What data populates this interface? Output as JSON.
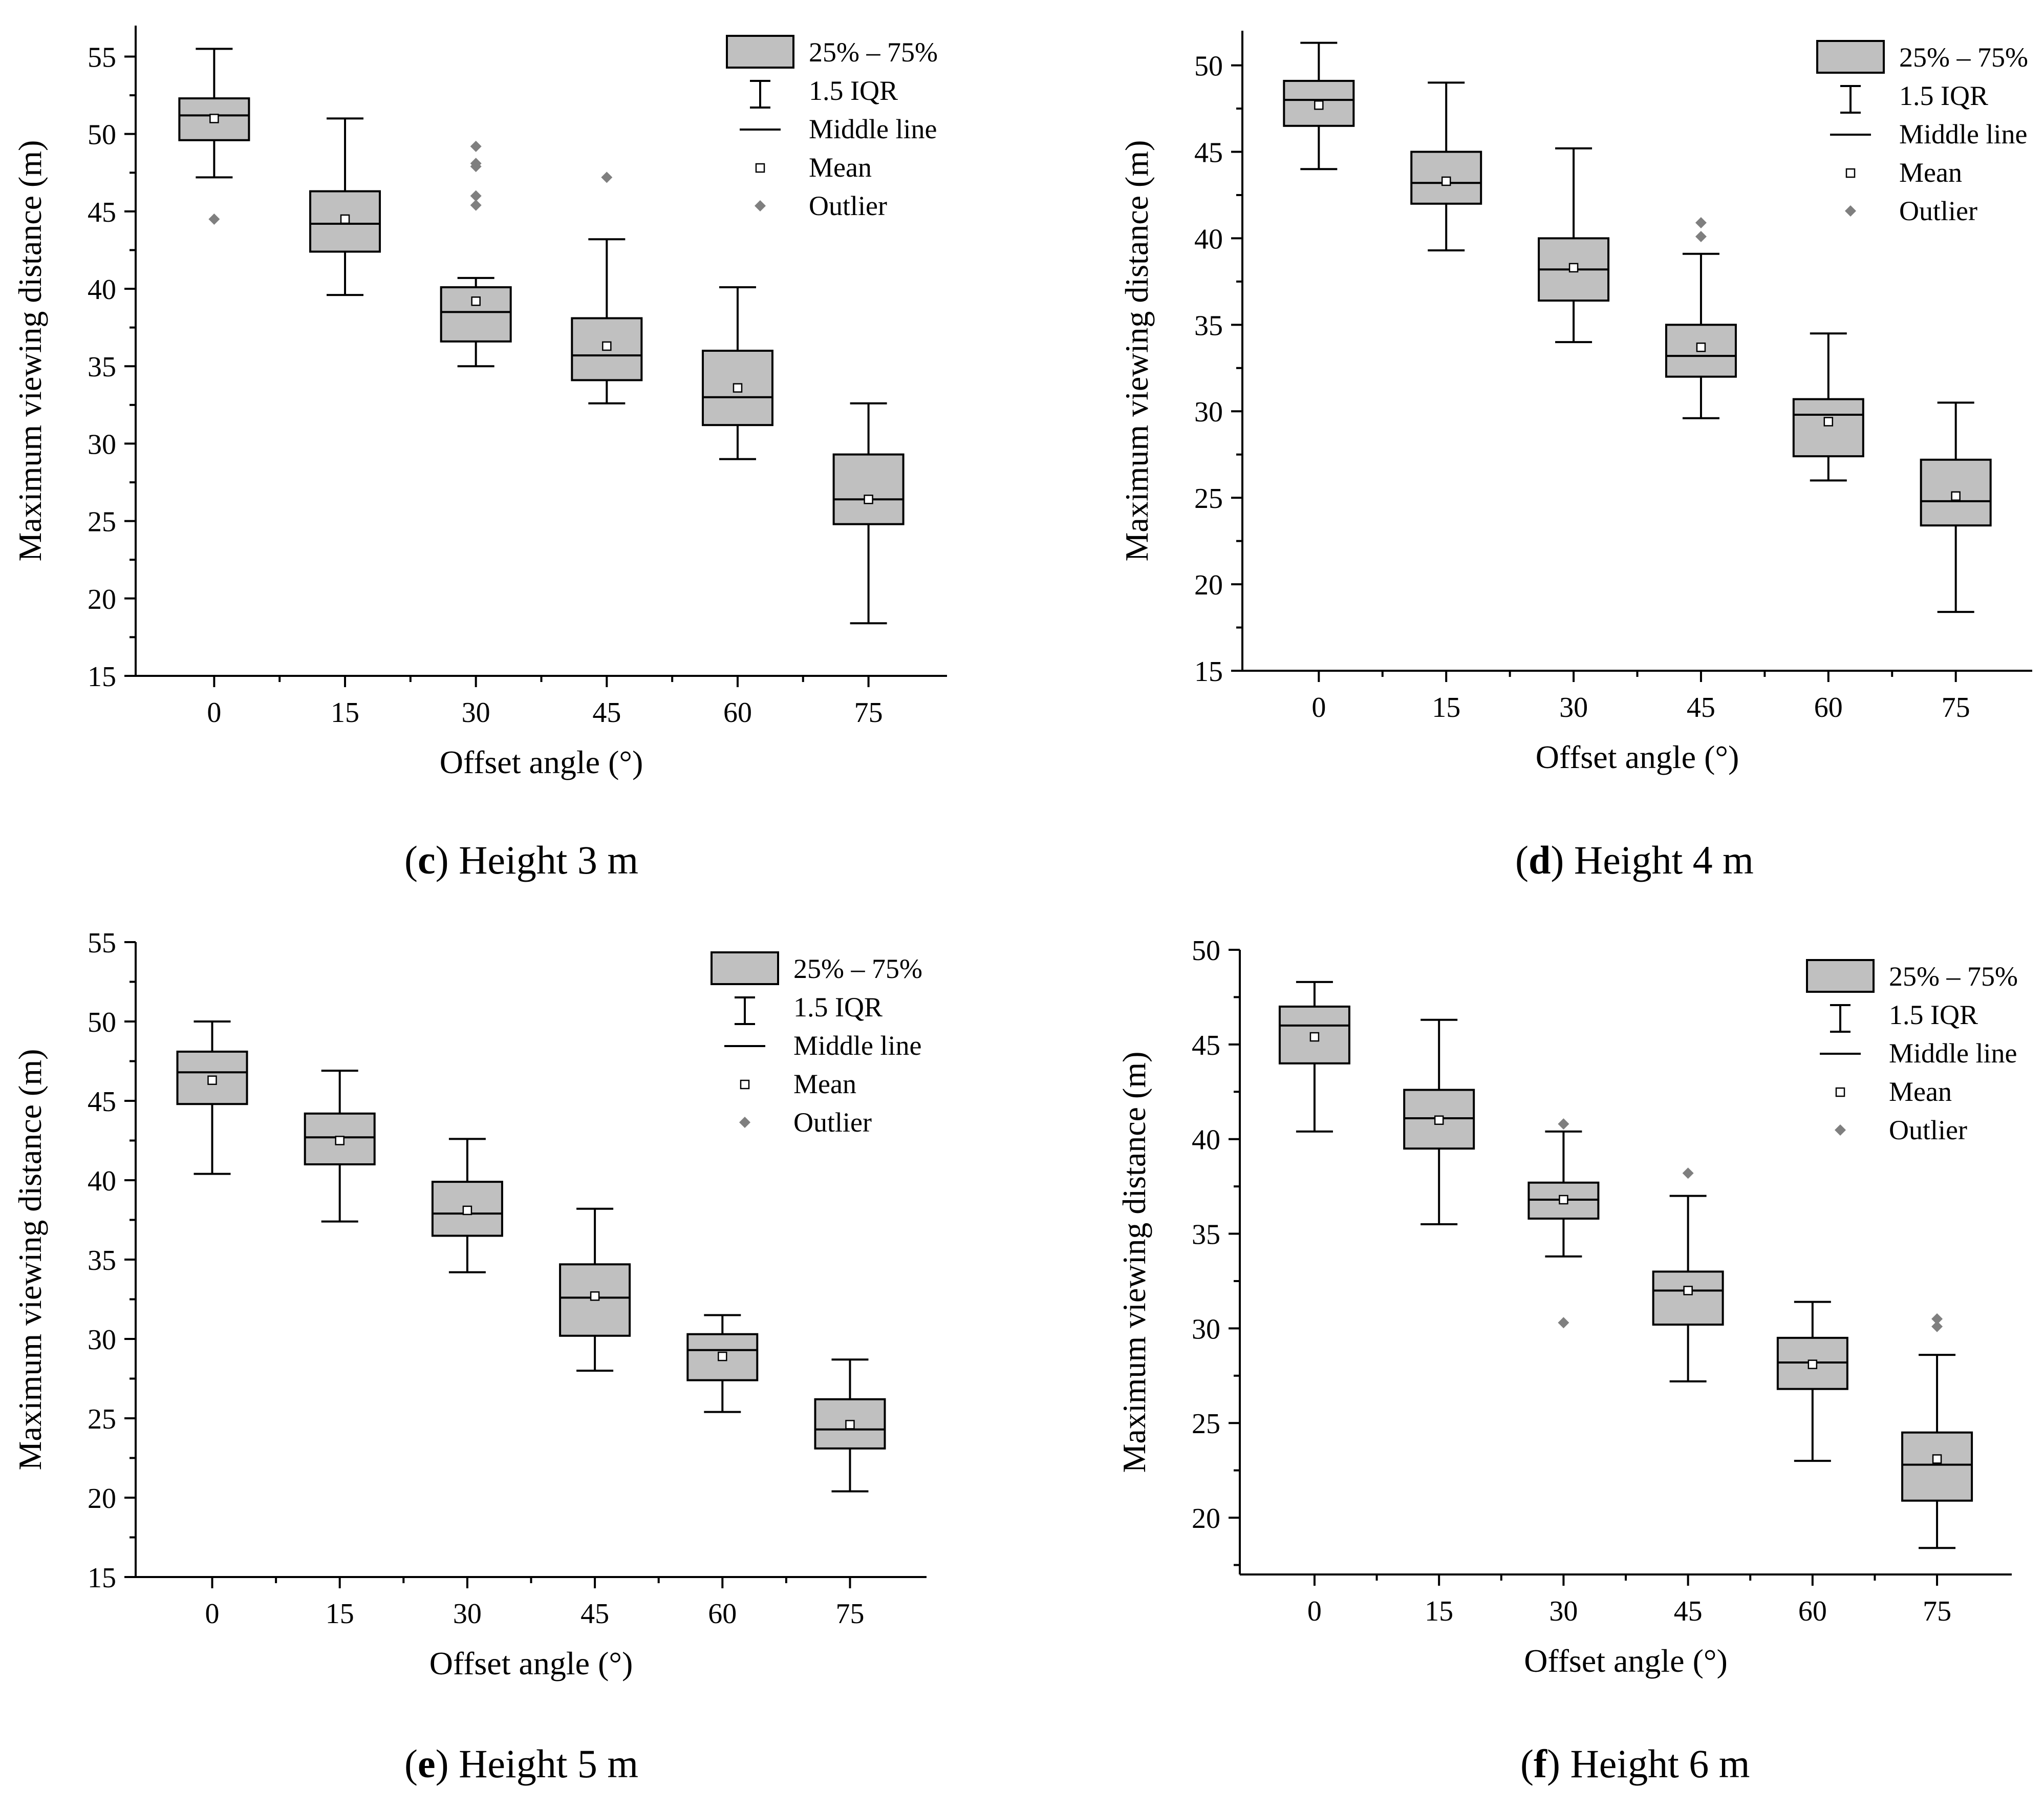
{
  "legend": {
    "box": "25% – 75%",
    "whisker": "1.5 IQR",
    "median": "Middle line",
    "mean": "Mean",
    "outlier": "Outlier"
  },
  "colors": {
    "box_fill": "#c0c0c0",
    "line": "#000000",
    "outlier": "#7f7f7f"
  },
  "chart_data": [
    {
      "type": "box",
      "panel_letter": "c",
      "caption": "Height 3 m",
      "xlabel": "Offset angle (°)",
      "ylabel": "Maximum viewing distance (m)",
      "categories": [
        "0",
        "15",
        "30",
        "45",
        "60",
        "75"
      ],
      "ylim": [
        15,
        57
      ],
      "yticks": [
        15,
        20,
        25,
        30,
        35,
        40,
        45,
        50,
        55
      ],
      "boxes": [
        {
          "min": 47.2,
          "q1": 49.6,
          "median": 51.2,
          "q3": 52.3,
          "max": 55.5,
          "mean": 51.0,
          "outliers": [
            44.5
          ]
        },
        {
          "min": 39.6,
          "q1": 42.4,
          "median": 44.2,
          "q3": 46.3,
          "max": 51.0,
          "mean": 44.5,
          "outliers": []
        },
        {
          "min": 35.0,
          "q1": 36.6,
          "median": 38.5,
          "q3": 40.1,
          "max": 40.7,
          "mean": 39.2,
          "outliers": [
            49.2,
            48.1,
            47.9,
            46.0,
            45.4
          ]
        },
        {
          "min": 32.6,
          "q1": 34.1,
          "median": 35.7,
          "q3": 38.1,
          "max": 43.2,
          "mean": 36.3,
          "outliers": [
            47.2
          ]
        },
        {
          "min": 29.0,
          "q1": 31.2,
          "median": 33.0,
          "q3": 36.0,
          "max": 40.1,
          "mean": 33.6,
          "outliers": []
        },
        {
          "min": 18.4,
          "q1": 24.8,
          "median": 26.4,
          "q3": 29.3,
          "max": 32.6,
          "mean": 26.4,
          "outliers": []
        }
      ]
    },
    {
      "type": "box",
      "panel_letter": "d",
      "caption": "Height 4 m",
      "xlabel": "Offset angle (°)",
      "ylabel": "Maximum viewing distance (m)",
      "categories": [
        "0",
        "15",
        "30",
        "45",
        "60",
        "75"
      ],
      "ylim": [
        15,
        52
      ],
      "yticks": [
        15,
        20,
        25,
        30,
        35,
        40,
        45,
        50
      ],
      "boxes": [
        {
          "min": 44.0,
          "q1": 46.5,
          "median": 48.0,
          "q3": 49.1,
          "max": 51.3,
          "mean": 47.7,
          "outliers": []
        },
        {
          "min": 39.3,
          "q1": 42.0,
          "median": 43.2,
          "q3": 45.0,
          "max": 49.0,
          "mean": 43.3,
          "outliers": []
        },
        {
          "min": 34.0,
          "q1": 36.4,
          "median": 38.2,
          "q3": 40.0,
          "max": 45.2,
          "mean": 38.3,
          "outliers": []
        },
        {
          "min": 29.6,
          "q1": 32.0,
          "median": 33.2,
          "q3": 35.0,
          "max": 39.1,
          "mean": 33.7,
          "outliers": [
            40.9,
            40.1
          ]
        },
        {
          "min": 26.0,
          "q1": 27.4,
          "median": 29.8,
          "q3": 30.7,
          "max": 34.5,
          "mean": 29.4,
          "outliers": []
        },
        {
          "min": 18.4,
          "q1": 23.4,
          "median": 24.8,
          "q3": 27.2,
          "max": 30.5,
          "mean": 25.1,
          "outliers": []
        }
      ]
    },
    {
      "type": "box",
      "panel_letter": "e",
      "caption": "Height 5 m",
      "xlabel": "Offset angle (°)",
      "ylabel": "Maximum viewing distance (m)",
      "categories": [
        "0",
        "15",
        "30",
        "45",
        "60",
        "75"
      ],
      "ylim": [
        15,
        55
      ],
      "yticks": [
        15,
        20,
        25,
        30,
        35,
        40,
        45,
        50,
        55
      ],
      "boxes": [
        {
          "min": 40.4,
          "q1": 44.8,
          "median": 46.8,
          "q3": 48.1,
          "max": 50.0,
          "mean": 46.3,
          "outliers": []
        },
        {
          "min": 37.4,
          "q1": 41.0,
          "median": 42.7,
          "q3": 44.2,
          "max": 46.9,
          "mean": 42.5,
          "outliers": []
        },
        {
          "min": 34.2,
          "q1": 36.5,
          "median": 37.9,
          "q3": 39.9,
          "max": 42.6,
          "mean": 38.1,
          "outliers": []
        },
        {
          "min": 28.0,
          "q1": 30.2,
          "median": 32.6,
          "q3": 34.7,
          "max": 38.2,
          "mean": 32.7,
          "outliers": []
        },
        {
          "min": 25.4,
          "q1": 27.4,
          "median": 29.3,
          "q3": 30.3,
          "max": 31.5,
          "mean": 28.9,
          "outliers": []
        },
        {
          "min": 20.4,
          "q1": 23.1,
          "median": 24.3,
          "q3": 26.2,
          "max": 28.7,
          "mean": 24.6,
          "outliers": []
        }
      ]
    },
    {
      "type": "box",
      "panel_letter": "f",
      "caption": "Height 6 m",
      "xlabel": "Offset angle (°)",
      "ylabel": "Maximum viewing distance (m)",
      "categories": [
        "0",
        "15",
        "30",
        "45",
        "60",
        "75"
      ],
      "ylim": [
        17,
        50
      ],
      "yticks": [
        20,
        25,
        30,
        35,
        40,
        45,
        50
      ],
      "boxes": [
        {
          "min": 40.4,
          "q1": 44.0,
          "median": 46.0,
          "q3": 47.0,
          "max": 48.3,
          "mean": 45.4,
          "outliers": []
        },
        {
          "min": 35.5,
          "q1": 39.5,
          "median": 41.1,
          "q3": 42.6,
          "max": 46.3,
          "mean": 41.0,
          "outliers": []
        },
        {
          "min": 33.8,
          "q1": 35.8,
          "median": 36.8,
          "q3": 37.7,
          "max": 40.4,
          "mean": 36.8,
          "outliers": [
            40.8,
            30.3
          ]
        },
        {
          "min": 27.2,
          "q1": 30.2,
          "median": 32.0,
          "q3": 33.0,
          "max": 37.0,
          "mean": 32.0,
          "outliers": [
            38.2
          ]
        },
        {
          "min": 23.0,
          "q1": 26.8,
          "median": 28.2,
          "q3": 29.5,
          "max": 31.4,
          "mean": 28.1,
          "outliers": []
        },
        {
          "min": 18.4,
          "q1": 20.9,
          "median": 22.8,
          "q3": 24.5,
          "max": 28.6,
          "mean": 23.1,
          "outliers": [
            30.5,
            30.1
          ]
        }
      ]
    }
  ]
}
